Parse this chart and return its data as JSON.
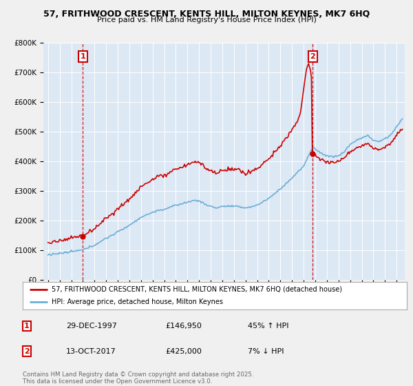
{
  "title1": "57, FRITHWOOD CRESCENT, KENTS HILL, MILTON KEYNES, MK7 6HQ",
  "title2": "Price paid vs. HM Land Registry's House Price Index (HPI)",
  "legend_label1": "57, FRITHWOOD CRESCENT, KENTS HILL, MILTON KEYNES, MK7 6HQ (detached house)",
  "legend_label2": "HPI: Average price, detached house, Milton Keynes",
  "sale1_label": "1",
  "sale1_date": "29-DEC-1997",
  "sale1_price": "£146,950",
  "sale1_hpi": "45% ↑ HPI",
  "sale2_label": "2",
  "sale2_date": "13-OCT-2017",
  "sale2_price": "£425,000",
  "sale2_hpi": "7% ↓ HPI",
  "footnote": "Contains HM Land Registry data © Crown copyright and database right 2025.\nThis data is licensed under the Open Government Licence v3.0.",
  "hpi_color": "#6baed6",
  "sale_color": "#cc0000",
  "sale1_x": 1997.99,
  "sale1_y": 146950,
  "sale2_x": 2017.79,
  "sale2_y": 425000,
  "ylim": [
    0,
    800000
  ],
  "xlim_start": 1994.6,
  "xlim_end": 2025.7,
  "plot_bg_color": "#dde8f5",
  "background_color": "#f0f0f0"
}
